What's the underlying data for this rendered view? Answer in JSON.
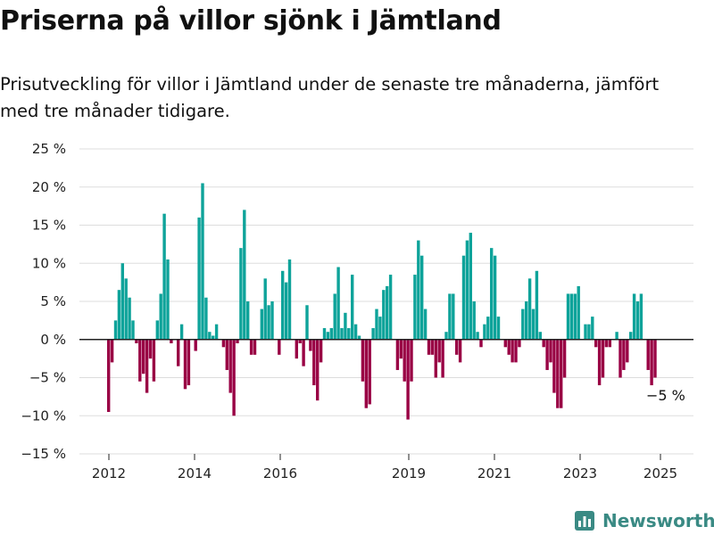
{
  "title": "Priserna på villor sjönk i Jämtland",
  "subtitle": "Prisutveckling för villor i Jämtland under de senaste tre månaderna, jämfört med tre månader tidigare.",
  "brand": "Newsworthy",
  "colors": {
    "positive": "#0ea39a",
    "negative": "#990044",
    "grid": "#dddddd",
    "axis": "#222222",
    "logo": "#3a8a84"
  },
  "chart_data": {
    "type": "bar",
    "unit": "%",
    "ylim": [
      -15,
      25
    ],
    "yticks": [
      25,
      20,
      15,
      10,
      5,
      0,
      -5,
      -10,
      -15
    ],
    "ytick_labels": [
      "25 %",
      "20 %",
      "15 %",
      "10 %",
      "5 %",
      "0 %",
      "−5 %",
      "−10 %",
      "−15 %"
    ],
    "xtick_labels": [
      "2012",
      "2014",
      "2016",
      "2019",
      "2021",
      "2023",
      "2025"
    ],
    "grid": true,
    "annotation": "−5 %",
    "series": [
      {
        "values": [
          -9.5,
          -3,
          2.5,
          6.5,
          10,
          8,
          5.5,
          2.5,
          -0.5,
          -5.5,
          -4.5,
          -7,
          -2.5,
          -5.5,
          2.5,
          6,
          16.5,
          10.5,
          -0.5,
          0,
          -3.5,
          2,
          -6.5,
          -6,
          0,
          -1.5,
          16,
          20.5,
          5.5,
          1,
          0.5,
          2,
          0,
          -1,
          -4,
          -7,
          -10,
          -0.5,
          12,
          17,
          5,
          -2,
          -2,
          0,
          4,
          8,
          4.5,
          5,
          0,
          -2,
          9,
          7.5,
          10.5,
          0,
          -2.5,
          -0.5,
          -3.5,
          4.5,
          -1.5,
          -6,
          -8,
          -3,
          1.5,
          1,
          1.5,
          6,
          9.5,
          1.5,
          3.5,
          1.5,
          8.5,
          2,
          0.5,
          -5.5,
          -9,
          -8.5,
          1.5,
          4,
          3,
          6.5,
          7,
          8.5,
          0,
          -4,
          -2.5,
          -5.5,
          -10.5,
          -5.5,
          8.5,
          13,
          11,
          4,
          -2,
          -2,
          -5,
          -3,
          -5,
          1,
          6,
          6,
          -2,
          -3,
          11,
          13,
          14,
          5,
          1,
          -1,
          2,
          3,
          12,
          11,
          3,
          0,
          -1,
          -2,
          -3,
          -3,
          -1,
          4,
          5,
          8,
          4,
          9,
          1,
          -1,
          -4,
          -3,
          -7,
          -9,
          -9,
          -5,
          6,
          6,
          6,
          7,
          0,
          2,
          2,
          3,
          -1,
          -6,
          -5,
          -1,
          -1,
          0,
          1,
          -5,
          -4,
          -3,
          1,
          6,
          5,
          6,
          0,
          -4,
          -6,
          -5
        ]
      }
    ]
  }
}
